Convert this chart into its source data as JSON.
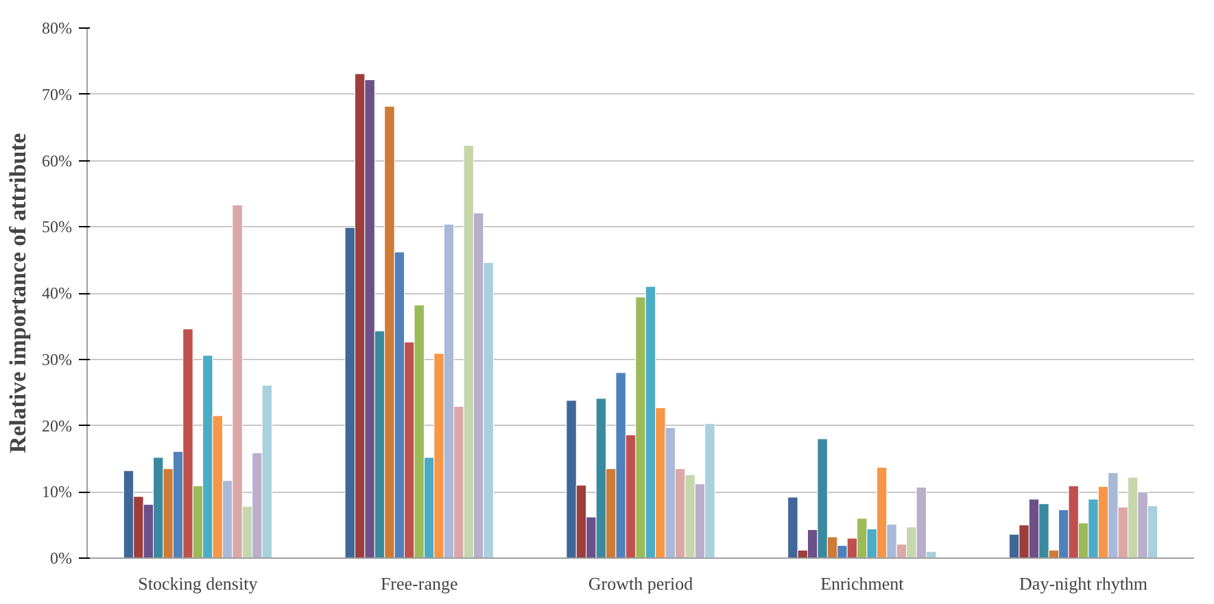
{
  "chart_data": {
    "type": "bar",
    "ylabel": "Relative importance of attribute",
    "categories": [
      "Stocking density",
      "Free-range",
      "Growth period",
      "Enrichment",
      "Day-night rhythm"
    ],
    "series": [
      {
        "color": "#3f6797",
        "values": [
          13.2,
          49.9,
          23.8,
          9.2,
          3.6
        ]
      },
      {
        "color": "#9d3e3b",
        "values": [
          9.3,
          73.1,
          11.0,
          1.2,
          5.0
        ]
      },
      {
        "color": "#6b5089",
        "values": [
          8.1,
          72.2,
          6.2,
          4.3,
          8.9
        ]
      },
      {
        "color": "#3a8a9f",
        "values": [
          15.2,
          34.3,
          24.1,
          18.0,
          8.2
        ]
      },
      {
        "color": "#cf7a35",
        "values": [
          13.5,
          68.2,
          13.5,
          3.2,
          1.2
        ]
      },
      {
        "color": "#4f81bd",
        "values": [
          16.1,
          46.2,
          28.0,
          1.9,
          7.3
        ]
      },
      {
        "color": "#c0504d",
        "values": [
          34.6,
          32.6,
          18.6,
          3.0,
          10.9
        ]
      },
      {
        "color": "#9bbb59",
        "values": [
          10.9,
          38.2,
          39.4,
          6.0,
          5.3
        ]
      },
      {
        "color": "#4bacc6",
        "values": [
          30.6,
          15.2,
          41.0,
          4.4,
          8.9
        ]
      },
      {
        "color": "#f79646",
        "values": [
          21.5,
          30.9,
          22.7,
          13.7,
          10.8
        ]
      },
      {
        "color": "#aab9d8",
        "values": [
          11.7,
          50.4,
          19.7,
          5.1,
          12.9
        ]
      },
      {
        "color": "#dba8a7",
        "values": [
          53.3,
          22.9,
          13.5,
          2.1,
          7.7
        ]
      },
      {
        "color": "#c6d7ad",
        "values": [
          7.8,
          62.3,
          12.6,
          4.7,
          12.2
        ]
      },
      {
        "color": "#b9afcb",
        "values": [
          15.9,
          52.1,
          11.2,
          10.7,
          10.0
        ]
      },
      {
        "color": "#a8d0dd",
        "values": [
          26.1,
          44.6,
          20.3,
          1.0,
          7.9
        ]
      }
    ],
    "ylim": [
      0,
      80
    ],
    "yticks": [
      {
        "value": 0,
        "label": "0%"
      },
      {
        "value": 10,
        "label": "10%"
      },
      {
        "value": 20,
        "label": "20%"
      },
      {
        "value": 30,
        "label": "30%"
      },
      {
        "value": 40,
        "label": "40%"
      },
      {
        "value": 50,
        "label": "50%"
      },
      {
        "value": 60,
        "label": "60%"
      },
      {
        "value": 70,
        "label": "70%"
      },
      {
        "value": 80,
        "label": "80%"
      }
    ],
    "grid": "y"
  }
}
